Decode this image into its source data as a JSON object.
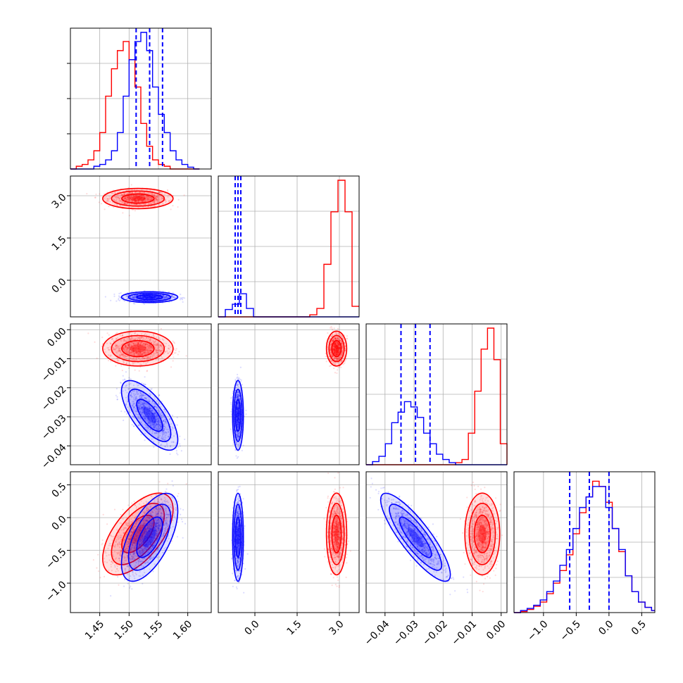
{
  "chart_data": {
    "type": "corner",
    "grid": true,
    "series": [
      {
        "name": "",
        "color": "#0000ff",
        "role": "blue-posterior"
      },
      {
        "name": "",
        "color": "#ff0000",
        "role": "red-posterior"
      }
    ],
    "parameters": [
      {
        "range": [
          1.4,
          1.64
        ],
        "ticks": [
          1.45,
          1.5,
          1.55,
          1.6
        ],
        "tick_labels": [
          "1.45",
          "1.50",
          "1.55",
          "1.60"
        ]
      },
      {
        "range": [
          -1.3,
          3.7
        ],
        "ticks": [
          0.0,
          1.5,
          3.0
        ],
        "tick_labels": [
          "0.0",
          "1.5",
          "3.0"
        ]
      },
      {
        "range": [
          -0.0465,
          0.002
        ],
        "ticks": [
          -0.04,
          -0.03,
          -0.02,
          -0.01,
          0.0
        ],
        "tick_labels": [
          "−0.04",
          "−0.03",
          "−0.02",
          "−0.01",
          "0.00"
        ]
      },
      {
        "range": [
          -1.45,
          0.7
        ],
        "ticks": [
          -1.0,
          -0.5,
          0.0,
          0.5
        ],
        "tick_labels": [
          "−1.0",
          "−0.5",
          "0.0",
          "0.5"
        ]
      }
    ],
    "posteriors": {
      "blue": {
        "mean": [
          1.535,
          -0.6,
          -0.0295,
          -0.3
        ],
        "sd": [
          0.02,
          0.08,
          0.005,
          0.28
        ],
        "corr_01": 0.0,
        "corr_02": -0.7,
        "corr_03": 0.6,
        "corr_12": 0.0,
        "corr_13": 0.0,
        "corr_23": -0.85
      },
      "red": {
        "mean": [
          1.515,
          2.9,
          -0.0065,
          -0.25
        ],
        "sd": [
          0.025,
          0.15,
          0.0025,
          0.26
        ],
        "corr_01": 0.0,
        "corr_02": 0.0,
        "corr_03": 0.6,
        "corr_12": 0.0,
        "corr_13": 0.0,
        "corr_23": 0.0
      }
    },
    "diagonal": [
      {
        "hist_max": 15,
        "bins": [
          1.4,
          1.41,
          1.42,
          1.43,
          1.44,
          1.45,
          1.46,
          1.47,
          1.48,
          1.49,
          1.5,
          1.51,
          1.52,
          1.53,
          1.54,
          1.55,
          1.56,
          1.57,
          1.58,
          1.59,
          1.6,
          1.61,
          1.62
        ],
        "blue": [
          0,
          0,
          0,
          0,
          0.3,
          0.5,
          1,
          2,
          4,
          8,
          12,
          14,
          15,
          13,
          9,
          6,
          4,
          2,
          1,
          0.5,
          0.2,
          0
        ],
        "red": [
          0,
          0.3,
          0.5,
          1,
          2,
          4,
          8,
          11,
          13,
          14,
          12,
          9,
          5,
          2.5,
          1,
          0.5,
          0.3,
          0,
          0,
          0,
          0,
          0
        ],
        "quantile_lines": [
          1.512,
          1.535,
          1.557
        ]
      },
      {
        "hist_max": 13,
        "bins": [
          -1.3,
          -1.05,
          -0.8,
          -0.55,
          -0.3,
          -0.05,
          0.2,
          0.45,
          0.7,
          0.95,
          1.2,
          1.45,
          1.7,
          1.95,
          2.2,
          2.45,
          2.7,
          2.95,
          3.2,
          3.45,
          3.7
        ],
        "blue": [
          0,
          0.7,
          1.2,
          2.2,
          0.8,
          0,
          0,
          0,
          0,
          0,
          0,
          0,
          0,
          0,
          0,
          0,
          0,
          0,
          0,
          0
        ],
        "red": [
          0,
          0,
          0,
          0,
          0,
          0,
          0,
          0,
          0,
          0,
          0,
          0,
          0,
          0.2,
          0.8,
          5,
          10,
          13,
          10,
          1
        ],
        "quantile_lines": [
          -0.7,
          -0.6,
          -0.5
        ]
      },
      {
        "hist_max": 13,
        "bins": [
          -0.0465,
          -0.0443,
          -0.0421,
          -0.0399,
          -0.0377,
          -0.0355,
          -0.0333,
          -0.0311,
          -0.0289,
          -0.0267,
          -0.0245,
          -0.0223,
          -0.0201,
          -0.0179,
          -0.0157,
          -0.0135,
          -0.0113,
          -0.0091,
          -0.0069,
          -0.0047,
          -0.0025,
          -0.0003,
          0.002
        ],
        "blue": [
          0,
          0.3,
          0.8,
          2,
          4,
          5,
          6,
          5.5,
          4.5,
          3,
          2,
          1,
          0.5,
          0.2,
          0,
          0,
          0,
          0,
          0,
          0,
          0,
          0
        ],
        "red": [
          0,
          0,
          0,
          0,
          0,
          0,
          0,
          0,
          0,
          0,
          0,
          0,
          0,
          0,
          0.2,
          0.5,
          3,
          7,
          11,
          13,
          10,
          2,
          0
        ],
        "quantile_lines": [
          -0.0345,
          -0.0295,
          -0.0245
        ]
      },
      {
        "hist_max": 13,
        "bins": [
          -1.45,
          -1.35,
          -1.25,
          -1.15,
          -1.05,
          -0.95,
          -0.85,
          -0.75,
          -0.65,
          -0.55,
          -0.45,
          -0.35,
          -0.25,
          -0.15,
          -0.05,
          0.05,
          0.15,
          0.25,
          0.35,
          0.45,
          0.55,
          0.65,
          0.7
        ],
        "blue": [
          0,
          0.2,
          0.4,
          0.7,
          1.2,
          2,
          3,
          4.5,
          6,
          8,
          10,
          11,
          12,
          12,
          10,
          8,
          6,
          3.5,
          2,
          1,
          0.5,
          0.2
        ],
        "red": [
          0,
          0.1,
          0.3,
          0.6,
          1,
          1.8,
          2.8,
          4,
          5.5,
          7.5,
          9.5,
          11,
          12.5,
          12,
          10.5,
          8,
          5.8,
          3.5,
          2,
          1,
          0.5,
          0.2
        ],
        "quantile_lines": [
          -0.6,
          -0.3,
          0.0
        ]
      }
    ]
  }
}
